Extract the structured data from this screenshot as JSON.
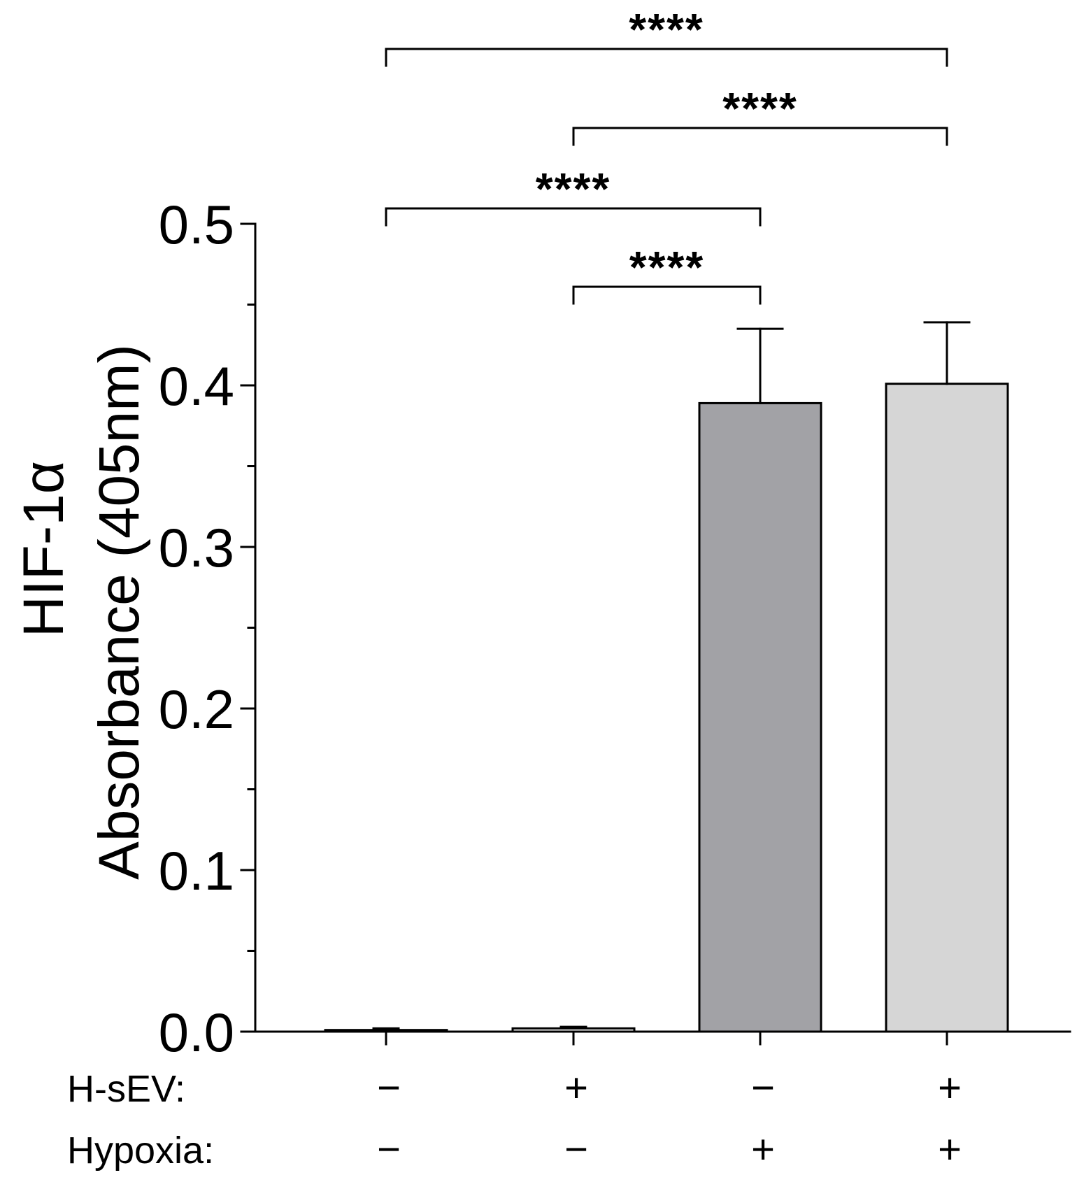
{
  "chart_data": {
    "type": "bar",
    "ylabel_lines": [
      "HIF-1α",
      "Absorbance (405nm)"
    ],
    "ylim": [
      0,
      0.5
    ],
    "yticks": [
      "0.0",
      "0.1",
      "0.2",
      "0.3",
      "0.4",
      "0.5"
    ],
    "minor_ticks": true,
    "grid": false,
    "categories": [
      "H-sEV − / Hypoxia −",
      "H-sEV + / Hypoxia −",
      "H-sEV − / Hypoxia +",
      "H-sEV + / Hypoxia +"
    ],
    "values": [
      0.001,
      0.002,
      0.389,
      0.401
    ],
    "error_upper": [
      0.001,
      0.001,
      0.046,
      0.038
    ],
    "bar_colors": [
      "#ffffff",
      "#ffffff",
      "#a2a2a6",
      "#d6d6d6"
    ],
    "condition_rows": [
      {
        "label": "H-sEV:",
        "values": [
          "−",
          "+",
          "−",
          "+"
        ]
      },
      {
        "label": "Hypoxia:",
        "values": [
          "−",
          "−",
          "+",
          "+"
        ]
      }
    ],
    "significance": [
      {
        "from": 0,
        "to": 3,
        "label": "****"
      },
      {
        "from": 1,
        "to": 3,
        "label": "****"
      },
      {
        "from": 0,
        "to": 2,
        "label": "****"
      },
      {
        "from": 1,
        "to": 2,
        "label": "****"
      }
    ]
  }
}
